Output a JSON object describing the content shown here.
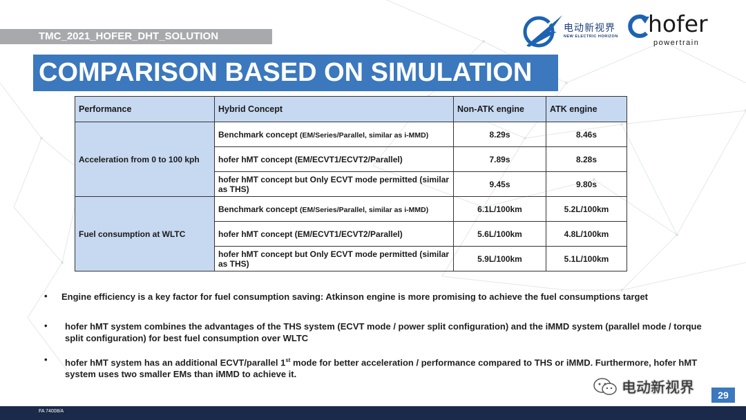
{
  "header": {
    "label": "TMC_2021_HOFER_DHT_SOLUTION",
    "title": "COMPARISON BASED ON SIMULATION",
    "logo_cn": "电动新视界",
    "logo_en": "NEW ELECTRIC HORIZON",
    "hofer_name": "hofer",
    "hofer_sub": "powertrain"
  },
  "table": {
    "headers": [
      "Performance",
      "Hybrid Concept",
      "Non-ATK engine",
      "ATK engine"
    ],
    "groups": [
      {
        "performance": "Acceleration from 0 to 100 kph",
        "rows": [
          {
            "concept": "Benchmark concept",
            "concept_detail": "(EM/Series/Parallel, similar as i-MMD)",
            "non_atk": "8.29s",
            "atk": "8.46s",
            "bold": false
          },
          {
            "concept": "hofer hMT concept (EM/ECVT1/ECVT2/Parallel)",
            "concept_detail": "",
            "non_atk": "7.89s",
            "atk": "8.28s",
            "bold": true
          },
          {
            "concept": "hofer hMT concept but Only ECVT mode permitted (similar as THS)",
            "concept_detail": "",
            "non_atk": "9.45s",
            "atk": "9.80s",
            "bold": false
          }
        ]
      },
      {
        "performance": "Fuel consumption at WLTC",
        "rows": [
          {
            "concept": "Benchmark concept",
            "concept_detail": "(EM/Series/Parallel, similar as i-MMD)",
            "non_atk": "6.1L/100km",
            "atk": "5.2L/100km",
            "bold": false
          },
          {
            "concept": "hofer hMT concept (EM/ECVT1/ECVT2/Parallel)",
            "concept_detail": "",
            "non_atk": "5.6L/100km",
            "atk": "4.8L/100km",
            "bold": true
          },
          {
            "concept": "hofer hMT concept but Only ECVT mode permitted (similar as THS)",
            "concept_detail": "",
            "non_atk": "5.9L/100km",
            "atk": "5.1L/100km",
            "bold": false
          }
        ]
      }
    ]
  },
  "bullets": [
    {
      "marker": "•",
      "text": "Engine efficiency is a key factor for fuel consumption saving:  Atkinson engine is more promising to achieve the fuel consumptions target"
    },
    {
      "marker": "•",
      "text": "hofer hMT system combines the advantages of the THS system (ECVT mode / power split configuration) and the iMMD system (parallel mode / torque split configuration) for best fuel consumption over WLTC"
    },
    {
      "marker": "•",
      "text_before": "hofer hMT system has an additional ECVT/parallel 1",
      "superscript": "st",
      "text_after": " mode for better acceleration / performance compared to THS or iMMD. Furthermore, hofer hMT system uses two smaller EMs than iMMD to achieve it."
    }
  ],
  "footer": {
    "code": "FA 74008/A",
    "page": "29",
    "watermark": "电动新视界"
  },
  "colors": {
    "title_blue": "#3b78bd",
    "table_header": "#c7d9f1",
    "gray_label": "#a7a9ac",
    "footer_navy": "#1b2a4a"
  }
}
